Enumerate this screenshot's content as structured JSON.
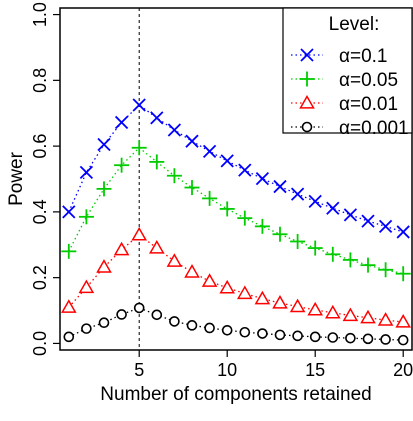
{
  "chart_data": {
    "type": "line",
    "xlabel": "Number of components retained",
    "ylabel": "Power",
    "x": [
      1,
      2,
      3,
      4,
      5,
      6,
      7,
      8,
      9,
      10,
      11,
      12,
      13,
      14,
      15,
      16,
      17,
      18,
      19,
      20
    ],
    "xlim": [
      0.5,
      20.5
    ],
    "ylim": [
      -0.02,
      1.02
    ],
    "xticks": [
      5,
      10,
      15,
      20
    ],
    "yticks": [
      0.0,
      0.2,
      0.4,
      0.6,
      0.8,
      1.0
    ],
    "xtick_labels": [
      "5",
      "10",
      "15",
      "20"
    ],
    "ytick_labels": [
      "0.0",
      "0.2",
      "0.4",
      "0.6",
      "0.8",
      "1.0"
    ],
    "vline_x": 5,
    "legend": {
      "title": "Level:",
      "placement": "top-right"
    },
    "series": [
      {
        "name": "α=0.1",
        "color": "#0000ff",
        "marker": "x",
        "values": [
          0.4,
          0.52,
          0.605,
          0.672,
          0.725,
          0.686,
          0.649,
          0.615,
          0.584,
          0.555,
          0.527,
          0.501,
          0.477,
          0.454,
          0.432,
          0.411,
          0.391,
          0.372,
          0.356,
          0.339
        ]
      },
      {
        "name": "α=0.05",
        "color": "#00cc00",
        "marker": "+",
        "values": [
          0.28,
          0.385,
          0.47,
          0.542,
          0.595,
          0.552,
          0.51,
          0.474,
          0.441,
          0.409,
          0.381,
          0.356,
          0.332,
          0.31,
          0.29,
          0.271,
          0.254,
          0.238,
          0.224,
          0.212
        ]
      },
      {
        "name": "α=0.01",
        "color": "#ff0000",
        "marker": "triangle",
        "values": [
          0.11,
          0.17,
          0.232,
          0.285,
          0.33,
          0.29,
          0.25,
          0.217,
          0.189,
          0.169,
          0.152,
          0.136,
          0.123,
          0.112,
          0.102,
          0.093,
          0.085,
          0.078,
          0.071,
          0.065
        ]
      },
      {
        "name": "α=0.001",
        "color": "#000000",
        "marker": "circle",
        "values": [
          0.02,
          0.045,
          0.063,
          0.088,
          0.108,
          0.087,
          0.067,
          0.055,
          0.047,
          0.04,
          0.034,
          0.03,
          0.026,
          0.023,
          0.02,
          0.018,
          0.016,
          0.014,
          0.012,
          0.01
        ]
      }
    ]
  }
}
